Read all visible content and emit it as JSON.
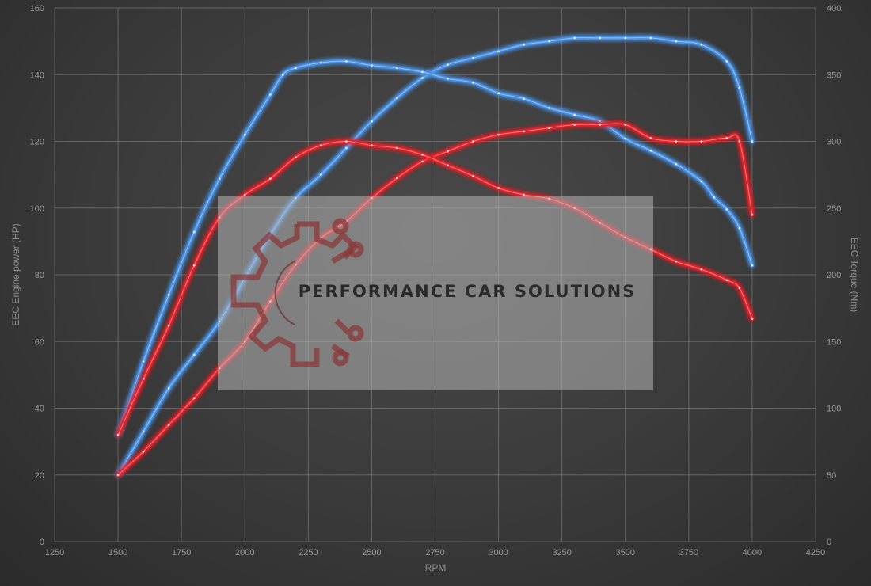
{
  "chart_data": {
    "type": "line",
    "xlabel": "RPM",
    "ylabel_left": "EEC Engine power (HP)",
    "ylabel_right": "EEC Torque (Nm)",
    "xlim": [
      1250,
      4250
    ],
    "ylim_left": [
      0,
      160
    ],
    "ylim_right": [
      0,
      400
    ],
    "x_ticks": [
      "1250",
      "1500",
      "1750",
      "2000",
      "2250",
      "2500",
      "2750",
      "3000",
      "3250",
      "3500",
      "3750",
      "4000",
      "4250"
    ],
    "y_ticks_left": [
      "0",
      "20",
      "40",
      "60",
      "80",
      "100",
      "120",
      "140",
      "160"
    ],
    "y_ticks_right": [
      "0",
      "50",
      "100",
      "150",
      "200",
      "250",
      "300",
      "350",
      "400"
    ],
    "grid": true,
    "series": [
      {
        "color": "#4a90e2",
        "axis": "left",
        "x": [
          1500,
          1600,
          1700,
          1800,
          1900,
          2000,
          2100,
          2200,
          2300,
          2400,
          2500,
          2600,
          2700,
          2800,
          2900,
          3000,
          3100,
          3200,
          3300,
          3400,
          3500,
          3600,
          3700,
          3800,
          3900,
          3950,
          4000
        ],
        "y": [
          20,
          33,
          46,
          56,
          66,
          79,
          92,
          103,
          110,
          118,
          126,
          133,
          139,
          143,
          145,
          147,
          149,
          150,
          151,
          151,
          151,
          151,
          150,
          149,
          144,
          136,
          120
        ]
      },
      {
        "color": "#4a90e2",
        "axis": "right",
        "x": [
          1500,
          1600,
          1700,
          1800,
          1900,
          2000,
          2100,
          2150,
          2200,
          2300,
          2400,
          2500,
          2600,
          2700,
          2800,
          2900,
          3000,
          3100,
          3200,
          3300,
          3400,
          3500,
          3600,
          3700,
          3800,
          3850,
          3900,
          3950,
          4000
        ],
        "y": [
          80,
          135,
          185,
          232,
          272,
          305,
          335,
          350,
          355,
          359,
          360,
          357,
          355,
          352,
          347,
          344,
          336,
          332,
          325,
          320,
          315,
          302,
          293,
          283,
          270,
          258,
          249,
          235,
          207
        ]
      },
      {
        "color": "#e0242a",
        "axis": "left",
        "x": [
          1500,
          1600,
          1700,
          1800,
          1900,
          2000,
          2100,
          2200,
          2300,
          2400,
          2500,
          2600,
          2700,
          2800,
          2900,
          3000,
          3100,
          3200,
          3300,
          3400,
          3500,
          3600,
          3700,
          3800,
          3900,
          3950,
          4000
        ],
        "y": [
          20,
          27,
          35,
          43,
          52,
          60,
          72,
          83,
          91,
          96,
          103,
          109,
          114,
          117,
          120,
          122,
          123,
          124,
          125,
          125,
          125,
          121,
          120,
          120,
          121,
          120,
          98
        ]
      },
      {
        "color": "#e0242a",
        "axis": "right",
        "x": [
          1500,
          1600,
          1700,
          1800,
          1900,
          2000,
          2100,
          2200,
          2300,
          2400,
          2500,
          2600,
          2700,
          2800,
          2900,
          3000,
          3100,
          3200,
          3300,
          3400,
          3500,
          3600,
          3700,
          3800,
          3900,
          3950,
          4000
        ],
        "y": [
          80,
          122,
          162,
          207,
          243,
          260,
          272,
          288,
          297,
          300,
          297,
          295,
          290,
          282,
          274,
          265,
          260,
          257,
          250,
          239,
          228,
          219,
          210,
          204,
          196,
          190,
          167
        ]
      }
    ]
  },
  "watermark": {
    "text": "PERFORMANCE CAR SOLUTIONS"
  }
}
